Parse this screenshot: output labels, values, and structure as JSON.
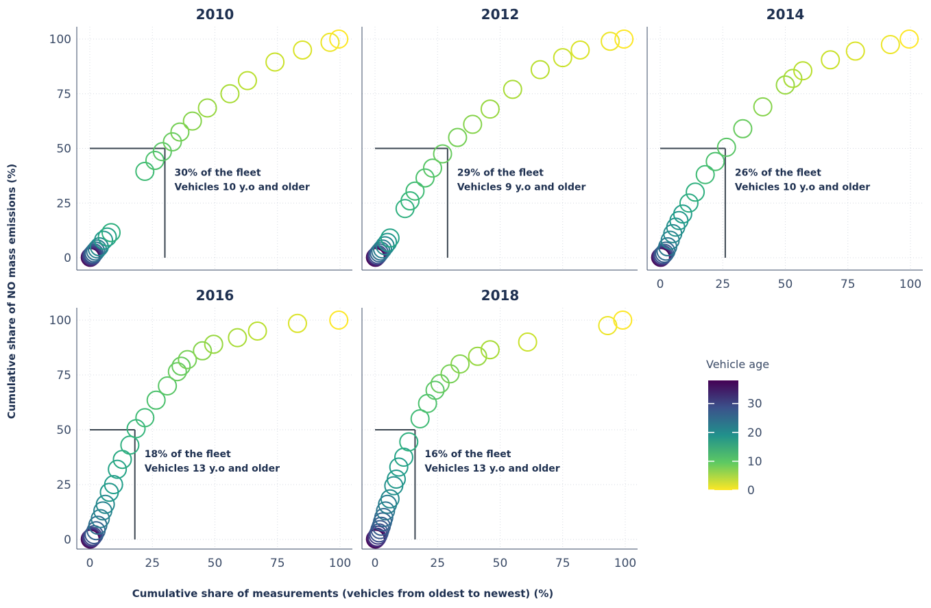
{
  "chart_data": {
    "type": "scatter",
    "xlabel": "Cumulative share of measurements (vehicles from oldest to newest) (%)",
    "ylabel": "Cumulative share of NO mass emissions (%)",
    "xlim": [
      0,
      100
    ],
    "ylim": [
      0,
      100
    ],
    "x_ticks": [
      "0",
      "25",
      "50",
      "75",
      "100"
    ],
    "y_ticks": [
      "0",
      "25",
      "50",
      "75",
      "100"
    ],
    "grid": true,
    "color_legend": {
      "title": "Vehicle age",
      "ticks": [
        "30",
        "20",
        "10",
        "0"
      ],
      "range": [
        0,
        38
      ],
      "colormap": "viridis",
      "placement": "right"
    },
    "panels": [
      {
        "title": "2010",
        "annotation": [
          "30% of the fleet",
          "Vehicles 10 y.o and older"
        ],
        "ref_x": 30,
        "ref_y": 50,
        "points": [
          {
            "x": 0.2,
            "y": 0.2,
            "age": 38
          },
          {
            "x": 0.4,
            "y": 0.4,
            "age": 36
          },
          {
            "x": 0.6,
            "y": 0.6,
            "age": 34
          },
          {
            "x": 0.8,
            "y": 0.8,
            "age": 32
          },
          {
            "x": 1.0,
            "y": 1.2,
            "age": 30
          },
          {
            "x": 1.3,
            "y": 1.6,
            "age": 28
          },
          {
            "x": 1.7,
            "y": 2.2,
            "age": 26
          },
          {
            "x": 2.3,
            "y": 3.0,
            "age": 24
          },
          {
            "x": 3.0,
            "y": 4.0,
            "age": 22
          },
          {
            "x": 3.8,
            "y": 5.0,
            "age": 20
          },
          {
            "x": 5.5,
            "y": 8.0,
            "age": 18
          },
          {
            "x": 7.0,
            "y": 9.5,
            "age": 16
          },
          {
            "x": 8.5,
            "y": 11.5,
            "age": 14
          },
          {
            "x": 22,
            "y": 39.5,
            "age": 12
          },
          {
            "x": 26,
            "y": 44.5,
            "age": 11
          },
          {
            "x": 29,
            "y": 48.5,
            "age": 10
          },
          {
            "x": 33,
            "y": 53,
            "age": 9
          },
          {
            "x": 36,
            "y": 57.5,
            "age": 8
          },
          {
            "x": 41,
            "y": 62.5,
            "age": 7
          },
          {
            "x": 47,
            "y": 68.5,
            "age": 6
          },
          {
            "x": 56,
            "y": 75,
            "age": 5
          },
          {
            "x": 63,
            "y": 81,
            "age": 4
          },
          {
            "x": 74,
            "y": 89.5,
            "age": 3
          },
          {
            "x": 85,
            "y": 95,
            "age": 2
          },
          {
            "x": 96,
            "y": 98.5,
            "age": 1
          },
          {
            "x": 99.5,
            "y": 100,
            "age": 0
          }
        ]
      },
      {
        "title": "2012",
        "annotation": [
          "29% of the fleet",
          "Vehicles 9 y.o and older"
        ],
        "ref_x": 29,
        "ref_y": 50,
        "points": [
          {
            "x": 0.2,
            "y": 0.2,
            "age": 38
          },
          {
            "x": 0.5,
            "y": 0.5,
            "age": 35
          },
          {
            "x": 0.8,
            "y": 0.9,
            "age": 32
          },
          {
            "x": 1.2,
            "y": 1.4,
            "age": 29
          },
          {
            "x": 1.7,
            "y": 2.2,
            "age": 26
          },
          {
            "x": 2.3,
            "y": 3.0,
            "age": 24
          },
          {
            "x": 3.0,
            "y": 4.0,
            "age": 22
          },
          {
            "x": 4.0,
            "y": 5.5,
            "age": 20
          },
          {
            "x": 5.0,
            "y": 7.0,
            "age": 18
          },
          {
            "x": 6.0,
            "y": 9.0,
            "age": 16
          },
          {
            "x": 12,
            "y": 22.5,
            "age": 14
          },
          {
            "x": 14,
            "y": 26,
            "age": 13
          },
          {
            "x": 16,
            "y": 30.5,
            "age": 12
          },
          {
            "x": 20,
            "y": 36.5,
            "age": 11
          },
          {
            "x": 23,
            "y": 41,
            "age": 10
          },
          {
            "x": 27,
            "y": 47.5,
            "age": 9
          },
          {
            "x": 33,
            "y": 55,
            "age": 8
          },
          {
            "x": 39,
            "y": 61,
            "age": 7
          },
          {
            "x": 46,
            "y": 68,
            "age": 6
          },
          {
            "x": 55,
            "y": 77,
            "age": 5
          },
          {
            "x": 66,
            "y": 86,
            "age": 4
          },
          {
            "x": 75,
            "y": 91.5,
            "age": 3
          },
          {
            "x": 82,
            "y": 95,
            "age": 2
          },
          {
            "x": 94,
            "y": 99,
            "age": 1
          },
          {
            "x": 99.5,
            "y": 100,
            "age": 0
          }
        ]
      },
      {
        "title": "2014",
        "annotation": [
          "26% of the fleet",
          "Vehicles 10 y.o and older"
        ],
        "ref_x": 26,
        "ref_y": 50,
        "points": [
          {
            "x": 0.2,
            "y": 0.2,
            "age": 38
          },
          {
            "x": 0.5,
            "y": 0.5,
            "age": 35
          },
          {
            "x": 0.8,
            "y": 0.9,
            "age": 32
          },
          {
            "x": 1.2,
            "y": 1.4,
            "age": 29
          },
          {
            "x": 1.7,
            "y": 2.0,
            "age": 27
          },
          {
            "x": 2.3,
            "y": 3.0,
            "age": 25
          },
          {
            "x": 3.0,
            "y": 5.0,
            "age": 23
          },
          {
            "x": 4.0,
            "y": 8.0,
            "age": 21
          },
          {
            "x": 5.0,
            "y": 11,
            "age": 20
          },
          {
            "x": 6.2,
            "y": 14,
            "age": 19
          },
          {
            "x": 7.5,
            "y": 17,
            "age": 18
          },
          {
            "x": 9.0,
            "y": 20,
            "age": 17
          },
          {
            "x": 11.5,
            "y": 25,
            "age": 15
          },
          {
            "x": 14,
            "y": 30,
            "age": 14
          },
          {
            "x": 18,
            "y": 38,
            "age": 12
          },
          {
            "x": 22,
            "y": 44,
            "age": 11
          },
          {
            "x": 26.5,
            "y": 50.5,
            "age": 10
          },
          {
            "x": 33,
            "y": 59,
            "age": 9
          },
          {
            "x": 41,
            "y": 69,
            "age": 7
          },
          {
            "x": 50,
            "y": 79,
            "age": 6
          },
          {
            "x": 53,
            "y": 82,
            "age": 5
          },
          {
            "x": 57,
            "y": 85.5,
            "age": 4
          },
          {
            "x": 68,
            "y": 90.5,
            "age": 3
          },
          {
            "x": 78,
            "y": 94.5,
            "age": 2
          },
          {
            "x": 92,
            "y": 97.5,
            "age": 1
          },
          {
            "x": 99.5,
            "y": 100,
            "age": 0
          }
        ]
      },
      {
        "title": "2016",
        "annotation": [
          "18% of the fleet",
          "Vehicles 13 y.o and older"
        ],
        "ref_x": 18,
        "ref_y": 50,
        "points": [
          {
            "x": 0.2,
            "y": 0.2,
            "age": 38
          },
          {
            "x": 0.5,
            "y": 0.5,
            "age": 35
          },
          {
            "x": 0.8,
            "y": 0.9,
            "age": 32
          },
          {
            "x": 1.2,
            "y": 1.4,
            "age": 30
          },
          {
            "x": 1.7,
            "y": 2.2,
            "age": 28
          },
          {
            "x": 2.5,
            "y": 4.0,
            "age": 26
          },
          {
            "x": 3.2,
            "y": 6.5,
            "age": 24
          },
          {
            "x": 4.2,
            "y": 9.5,
            "age": 22
          },
          {
            "x": 5.2,
            "y": 13,
            "age": 21
          },
          {
            "x": 6.2,
            "y": 16,
            "age": 20
          },
          {
            "x": 7.8,
            "y": 21.5,
            "age": 18
          },
          {
            "x": 9.5,
            "y": 25,
            "age": 17
          },
          {
            "x": 11,
            "y": 32,
            "age": 16
          },
          {
            "x": 13,
            "y": 36.5,
            "age": 15
          },
          {
            "x": 16,
            "y": 43,
            "age": 14
          },
          {
            "x": 18.5,
            "y": 50.5,
            "age": 13
          },
          {
            "x": 22,
            "y": 55.5,
            "age": 12
          },
          {
            "x": 26.5,
            "y": 63.5,
            "age": 11
          },
          {
            "x": 31,
            "y": 70,
            "age": 10
          },
          {
            "x": 35,
            "y": 76.5,
            "age": 9
          },
          {
            "x": 36.5,
            "y": 79,
            "age": 9
          },
          {
            "x": 39,
            "y": 82,
            "age": 8
          },
          {
            "x": 45,
            "y": 86,
            "age": 7
          },
          {
            "x": 49.5,
            "y": 89,
            "age": 6
          },
          {
            "x": 59,
            "y": 92,
            "age": 5
          },
          {
            "x": 67,
            "y": 95,
            "age": 4
          },
          {
            "x": 83,
            "y": 98.5,
            "age": 2
          },
          {
            "x": 99.5,
            "y": 100,
            "age": 0
          }
        ]
      },
      {
        "title": "2018",
        "annotation": [
          "16% of the fleet",
          "Vehicles 13 y.o and older"
        ],
        "ref_x": 16,
        "ref_y": 50,
        "points": [
          {
            "x": 0.2,
            "y": 0.2,
            "age": 38
          },
          {
            "x": 0.5,
            "y": 0.6,
            "age": 35
          },
          {
            "x": 0.8,
            "y": 1.0,
            "age": 33
          },
          {
            "x": 1.2,
            "y": 2.0,
            "age": 31
          },
          {
            "x": 1.6,
            "y": 3.0,
            "age": 29
          },
          {
            "x": 2.0,
            "y": 4.5,
            "age": 28
          },
          {
            "x": 2.5,
            "y": 6.0,
            "age": 27
          },
          {
            "x": 3.0,
            "y": 8.0,
            "age": 26
          },
          {
            "x": 3.5,
            "y": 10,
            "age": 25
          },
          {
            "x": 4.2,
            "y": 13,
            "age": 23
          },
          {
            "x": 5.0,
            "y": 16,
            "age": 22
          },
          {
            "x": 6.0,
            "y": 18.5,
            "age": 20
          },
          {
            "x": 7.5,
            "y": 24.5,
            "age": 19
          },
          {
            "x": 8.5,
            "y": 27.5,
            "age": 18
          },
          {
            "x": 9.5,
            "y": 33,
            "age": 17
          },
          {
            "x": 11.5,
            "y": 37.5,
            "age": 16
          },
          {
            "x": 13.5,
            "y": 44.5,
            "age": 14
          },
          {
            "x": 18,
            "y": 55,
            "age": 12
          },
          {
            "x": 21,
            "y": 62,
            "age": 11
          },
          {
            "x": 24,
            "y": 68,
            "age": 10
          },
          {
            "x": 26,
            "y": 71,
            "age": 9
          },
          {
            "x": 30,
            "y": 75.5,
            "age": 8
          },
          {
            "x": 34,
            "y": 80,
            "age": 7
          },
          {
            "x": 41,
            "y": 83.5,
            "age": 6
          },
          {
            "x": 46,
            "y": 86.5,
            "age": 5
          },
          {
            "x": 61,
            "y": 90,
            "age": 3
          },
          {
            "x": 93,
            "y": 97.5,
            "age": 1
          },
          {
            "x": 99,
            "y": 100,
            "age": 0
          }
        ]
      }
    ]
  }
}
